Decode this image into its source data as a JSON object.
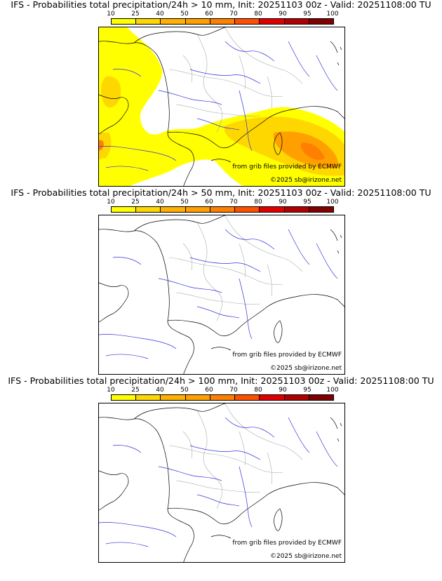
{
  "legend": {
    "ticks": [
      "10",
      "25",
      "40",
      "50",
      "60",
      "70",
      "80",
      "90",
      "95",
      "100"
    ],
    "colors": [
      "#ffff00",
      "#ffd700",
      "#ffb000",
      "#ffa000",
      "#ff8000",
      "#ff5000",
      "#e00000",
      "#b00000",
      "#800000",
      "#500000"
    ]
  },
  "credit_source": "from grib files provided by ECMWF",
  "credit_copyright": "©2025 sb@irizone.net",
  "panels": [
    {
      "title": "IFS - Probabilities total precipitation/24h > 10 mm, Init: 20251103 00z - Valid: 20251108:00 TU"
    },
    {
      "title": "IFS - Probabilities total precipitation/24h > 50 mm, Init: 20251103 00z - Valid: 20251108:00 TU"
    },
    {
      "title": "IFS - Probabilities total precipitation/24h > 100 mm, Init: 20251103 00z - Valid: 20251108:00 TU"
    }
  ]
}
